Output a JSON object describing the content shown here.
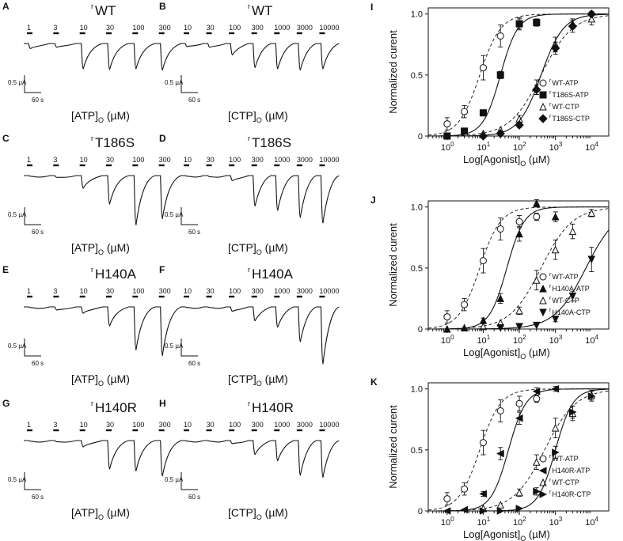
{
  "colors": {
    "ink": "#111111",
    "background": "#ffffff"
  },
  "trace_panels": [
    {
      "letter": "A",
      "receptor_prefix": "r",
      "receptor": "WT",
      "agonist_label": "[ATP]",
      "agonist_sub": "O",
      "unit": " (µM)",
      "concentrations": [
        "1",
        "3",
        "10",
        "30",
        "100",
        "300"
      ],
      "amplitudes": [
        0.08,
        0.06,
        0.4,
        0.41,
        0.4,
        0.42
      ],
      "scale_current": "0.5 µA",
      "scale_time": "60 s"
    },
    {
      "letter": "B",
      "receptor_prefix": "r",
      "receptor": "WT",
      "agonist_label": "[CTP]",
      "agonist_sub": "O",
      "unit": " (µM)",
      "concentrations": [
        "10",
        "30",
        "100",
        "300",
        "1000",
        "3000",
        "10000"
      ],
      "amplitudes": [
        0.05,
        0.06,
        0.18,
        0.38,
        0.4,
        0.42,
        0.4
      ],
      "scale_current": "0.5 µA",
      "scale_time": "60 s"
    },
    {
      "letter": "C",
      "receptor_prefix": "r",
      "receptor": "T186S",
      "agonist_label": "[ATP]",
      "agonist_sub": "O",
      "unit": " (µM)",
      "concentrations": [
        "1",
        "3",
        "10",
        "30",
        "100",
        "300"
      ],
      "amplitudes": [
        0.01,
        0.03,
        0.2,
        0.45,
        0.78,
        0.68
      ],
      "scale_current": "0.5 µA",
      "scale_time": "60 s"
    },
    {
      "letter": "D",
      "receptor_prefix": "r",
      "receptor": "T186S",
      "agonist_label": "[CTP]",
      "agonist_sub": "O",
      "unit": " (µM)",
      "concentrations": [
        "10",
        "30",
        "100",
        "300",
        "1000",
        "3000",
        "10000"
      ],
      "amplitudes": [
        0.01,
        0.02,
        0.08,
        0.48,
        0.55,
        0.66,
        0.75
      ],
      "scale_current": "0.5 µA",
      "scale_time": "60 s"
    },
    {
      "letter": "E",
      "receptor_prefix": "r",
      "receptor": "H140A",
      "agonist_label": "[ATP]",
      "agonist_sub": "O",
      "unit": " (µM)",
      "concentrations": [
        "1",
        "3",
        "10",
        "30",
        "100",
        "300"
      ],
      "amplitudes": [
        0.01,
        0.05,
        0.1,
        0.3,
        0.68,
        0.77
      ],
      "scale_current": "0.5 µA",
      "scale_time": "60 s"
    },
    {
      "letter": "F",
      "receptor_prefix": "r",
      "receptor": "H140A",
      "agonist_label": "[CTP]",
      "agonist_sub": "O",
      "unit": " (µM)",
      "concentrations": [
        "10",
        "30",
        "100",
        "300",
        "1000",
        "3000",
        "10000"
      ],
      "amplitudes": [
        0.01,
        0.01,
        0.07,
        0.22,
        0.32,
        0.55,
        0.9
      ],
      "scale_current": "0.5 µA",
      "scale_time": "60 s"
    },
    {
      "letter": "G",
      "receptor_prefix": "r",
      "receptor": "H140R",
      "agonist_label": "[ATP]",
      "agonist_sub": "O",
      "unit": " (µM)",
      "concentrations": [
        "1",
        "3",
        "10",
        "30",
        "100",
        "300"
      ],
      "amplitudes": [
        0.01,
        0.02,
        0.1,
        0.45,
        0.48,
        0.56
      ],
      "scale_current": "0.5 µA",
      "scale_time": "60 s"
    },
    {
      "letter": "H",
      "receptor_prefix": "r",
      "receptor": "H140R",
      "agonist_label": "[CTP]",
      "agonist_sub": "O",
      "unit": " (µM)",
      "concentrations": [
        "10",
        "30",
        "100",
        "300",
        "1000",
        "3000",
        "10000"
      ],
      "amplitudes": [
        0.01,
        0.01,
        0.05,
        0.22,
        0.32,
        0.55,
        0.58
      ],
      "scale_current": "0.5 µA",
      "scale_time": "60 s"
    }
  ],
  "chart_data": [
    {
      "panel": "I",
      "type": "scatter",
      "ylabel": "Normalized curent",
      "xlabel_main": "Log[Agonist]",
      "xlabel_sub": "O",
      "xlabel_unit": " (µM)",
      "xscale": "log",
      "xlim": [
        0.3,
        30000
      ],
      "ylim": [
        0,
        1.05
      ],
      "x_ticks": [
        "10^0",
        "10^1",
        "10^2",
        "10^3",
        "10^4"
      ],
      "y_ticks": [
        "0",
        "0.5",
        "1.0"
      ],
      "legend_position": "middle-right",
      "series": [
        {
          "prefix": "r",
          "name": "WT-ATP",
          "marker": "circle-open",
          "line": "dash",
          "ec50": 8,
          "hill": 1.5,
          "x": [
            1,
            3,
            10,
            30,
            100,
            300
          ],
          "y": [
            0.1,
            0.2,
            0.56,
            0.82,
            0.92,
            0.93
          ],
          "err": [
            0.05,
            0.05,
            0.1,
            0.09,
            0.05,
            0.03
          ]
        },
        {
          "prefix": "r",
          "name": "T186S-ATP",
          "marker": "square-filled",
          "line": "solid",
          "ec50": 30,
          "hill": 1.8,
          "x": [
            1,
            3,
            10,
            30,
            100,
            300
          ],
          "y": [
            0.0,
            0.04,
            0.19,
            0.5,
            0.92,
            0.93
          ],
          "err": [
            0.01,
            0.01,
            0.02,
            0.03,
            0.04,
            0.02
          ]
        },
        {
          "prefix": "r",
          "name": "WT-CTP",
          "marker": "triangle-open",
          "line": "dash",
          "ec50": 400,
          "hill": 1.0,
          "x": [
            10,
            30,
            100,
            300,
            1000,
            3000,
            10000
          ],
          "y": [
            0.02,
            0.05,
            0.14,
            0.4,
            0.75,
            0.92,
            0.96
          ],
          "err": [
            0.01,
            0.01,
            0.03,
            0.06,
            0.06,
            0.04,
            0.05
          ]
        },
        {
          "prefix": "r",
          "name": "T186S-CTP",
          "marker": "diamond-filled",
          "line": "solid",
          "ec50": 400,
          "hill": 1.4,
          "x": [
            10,
            30,
            100,
            300,
            1000,
            3000,
            10000
          ],
          "y": [
            0.0,
            0.02,
            0.09,
            0.38,
            0.72,
            0.9,
            1.0
          ],
          "err": [
            0.01,
            0.01,
            0.02,
            0.04,
            0.05,
            0.05,
            0.02
          ]
        }
      ]
    },
    {
      "panel": "J",
      "type": "scatter",
      "ylabel": "Normalized curent",
      "xlabel_main": "Log[Agonist]",
      "xlabel_sub": "O",
      "xlabel_unit": " (µM)",
      "xscale": "log",
      "xlim": [
        0.3,
        30000
      ],
      "ylim": [
        0,
        1.05
      ],
      "x_ticks": [
        "10^0",
        "10^1",
        "10^2",
        "10^3",
        "10^4"
      ],
      "y_ticks": [
        "0",
        "0.5",
        "1.0"
      ],
      "legend_position": "bottom-right",
      "series": [
        {
          "prefix": "r",
          "name": "WT-ATP",
          "marker": "circle-open",
          "line": "dash",
          "ec50": 8,
          "hill": 1.5,
          "x": [
            1,
            3,
            10,
            30,
            100,
            300
          ],
          "y": [
            0.1,
            0.2,
            0.56,
            0.82,
            0.88,
            0.92
          ],
          "err": [
            0.05,
            0.05,
            0.1,
            0.09,
            0.05,
            0.03
          ]
        },
        {
          "prefix": "r",
          "name": "H140A-ATP",
          "marker": "triangle-up-filled",
          "line": "solid",
          "ec50": 45,
          "hill": 1.8,
          "x": [
            1,
            3,
            10,
            30,
            100,
            300,
            1000
          ],
          "y": [
            0.0,
            0.01,
            0.07,
            0.25,
            0.78,
            1.03,
            0.92
          ],
          "err": [
            0.01,
            0.01,
            0.02,
            0.04,
            0.06,
            0.03,
            0.04
          ]
        },
        {
          "prefix": "r",
          "name": "WT-CTP",
          "marker": "triangle-open",
          "line": "dash",
          "ec50": 400,
          "hill": 1.0,
          "x": [
            10,
            30,
            100,
            300,
            1000,
            3000,
            10000
          ],
          "y": [
            0.02,
            0.05,
            0.15,
            0.4,
            0.65,
            0.8,
            0.95
          ],
          "err": [
            0.01,
            0.01,
            0.03,
            0.08,
            0.08,
            0.06,
            0.03
          ]
        },
        {
          "prefix": "r",
          "name": "H140A-CTP",
          "marker": "triangle-down-filled",
          "line": "solid",
          "ec50": 7000,
          "hill": 1.0,
          "x": [
            30,
            100,
            300,
            1000,
            3000,
            10000
          ],
          "y": [
            0.01,
            0.02,
            0.03,
            0.08,
            0.27,
            0.57
          ],
          "err": [
            0.01,
            0.01,
            0.01,
            0.02,
            0.04,
            0.1
          ]
        }
      ]
    },
    {
      "panel": "K",
      "type": "scatter",
      "ylabel": "Normalized curent",
      "xlabel_main": "Log[Agonist]",
      "xlabel_sub": "O",
      "xlabel_unit": " (µM)",
      "xscale": "log",
      "xlim": [
        0.3,
        30000
      ],
      "ylim": [
        0,
        1.05
      ],
      "x_ticks": [
        "10^0",
        "10^1",
        "10^2",
        "10^3",
        "10^4"
      ],
      "y_ticks": [
        "0",
        "0.5",
        "1.0"
      ],
      "legend_position": "bottom-right",
      "series": [
        {
          "prefix": "r",
          "name": "WT-ATP",
          "marker": "circle-open",
          "line": "dash",
          "ec50": 8,
          "hill": 1.5,
          "x": [
            1,
            3,
            10,
            30,
            100,
            300
          ],
          "y": [
            0.1,
            0.18,
            0.56,
            0.82,
            0.88,
            0.92
          ],
          "err": [
            0.05,
            0.05,
            0.1,
            0.09,
            0.06,
            0.03
          ]
        },
        {
          "prefix": "r",
          "name": "H140R-ATP",
          "marker": "triangle-left-filled",
          "line": "solid",
          "ec50": 50,
          "hill": 1.8,
          "x": [
            1,
            3,
            10,
            30,
            100,
            300,
            1000
          ],
          "y": [
            0.0,
            0.01,
            0.14,
            0.47,
            0.76,
            0.98,
            1.0
          ],
          "err": [
            0.01,
            0.01,
            0.02,
            0.05,
            0.05,
            0.03,
            0.02
          ]
        },
        {
          "prefix": "r",
          "name": "WT-CTP",
          "marker": "triangle-open",
          "line": "dash",
          "ec50": 500,
          "hill": 1.0,
          "x": [
            10,
            30,
            100,
            300,
            1000,
            3000,
            10000
          ],
          "y": [
            0.02,
            0.05,
            0.15,
            0.4,
            0.68,
            0.8,
            0.95
          ],
          "err": [
            0.01,
            0.01,
            0.03,
            0.06,
            0.08,
            0.06,
            0.04
          ]
        },
        {
          "prefix": "r",
          "name": "H140R-CTP",
          "marker": "triangle-right-filled",
          "line": "solid",
          "ec50": 1000,
          "hill": 1.8,
          "x": [
            10,
            30,
            100,
            300,
            1000,
            3000,
            10000
          ],
          "y": [
            0.0,
            0.0,
            0.02,
            0.16,
            0.48,
            0.81,
            0.94
          ],
          "err": [
            0.01,
            0.01,
            0.01,
            0.03,
            0.05,
            0.05,
            0.04
          ]
        }
      ]
    }
  ]
}
